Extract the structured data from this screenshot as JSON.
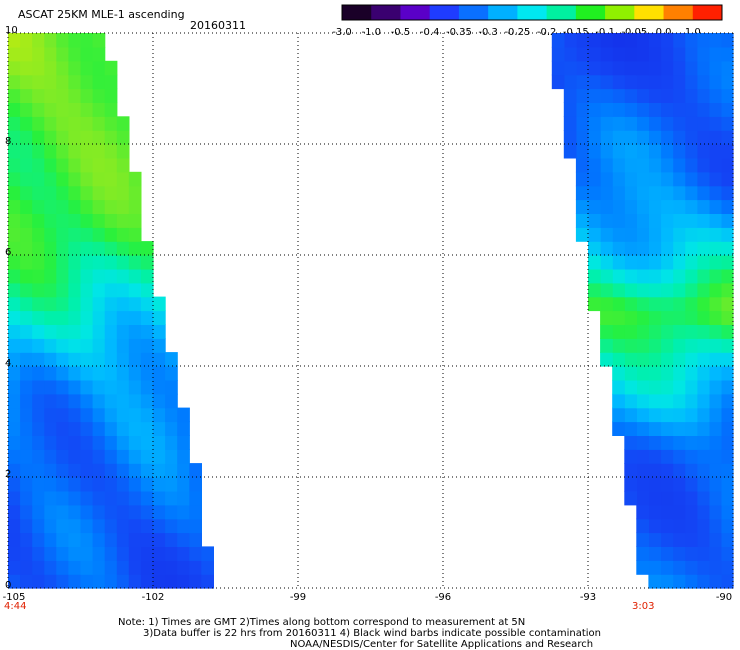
{
  "header": {
    "title": "ASCAT 25KM MLE-1 ascending",
    "date": "20160311"
  },
  "colorbar": {
    "labels": [
      "-3.0",
      "-1.0",
      "-0.5",
      "-0.4",
      "-0.35",
      "-0.3",
      "-0.25",
      "-0.2",
      "-0.15",
      "-0.1",
      "-0.05",
      "0.0",
      "1.0"
    ],
    "colors": [
      "#1a0028",
      "#3a0070",
      "#5a00c8",
      "#1f3cff",
      "#0a70ff",
      "#00b0ff",
      "#00e8f0",
      "#00f0a0",
      "#20f020",
      "#90f000",
      "#ffe000",
      "#ff8000",
      "#ff2000"
    ]
  },
  "chart_data": {
    "type": "heatmap",
    "title": "ASCAT 25KM MLE-1 ascending",
    "date": "20160311",
    "x_ticks": [
      "-105",
      "-102",
      "-99",
      "-96",
      "-93",
      "-90"
    ],
    "y_ticks": [
      "0",
      "2",
      "4",
      "6",
      "8",
      "10"
    ],
    "xlim": [
      -105,
      -90
    ],
    "ylim": [
      0,
      10
    ],
    "grid": true,
    "left_swath": {
      "start_time": "4:44",
      "west_lon": -105,
      "east_edge_lon_by_lat": [
        [
          0,
          -100.9
        ],
        [
          2,
          -101.2
        ],
        [
          4,
          -101.7
        ],
        [
          6,
          -102.2
        ],
        [
          8,
          -102.6
        ],
        [
          10,
          -103.1
        ]
      ],
      "values_by_lat": [
        {
          "lat": 0.5,
          "value": -0.37
        },
        {
          "lat": 2.0,
          "value": -0.36
        },
        {
          "lat": 3.5,
          "value": -0.32
        },
        {
          "lat": 5.0,
          "value": -0.26
        },
        {
          "lat": 6.5,
          "value": -0.21
        },
        {
          "lat": 8.5,
          "value": -0.17
        },
        {
          "lat": 9.5,
          "value": -0.15
        }
      ]
    },
    "right_swath": {
      "start_time": "3:03",
      "east_lon": -90,
      "west_edge_lon_by_lat": [
        [
          0,
          -91.8
        ],
        [
          2,
          -92.2
        ],
        [
          4,
          -92.6
        ],
        [
          6,
          -93.1
        ],
        [
          8,
          -93.4
        ],
        [
          10,
          -93.9
        ]
      ],
      "values_by_lat": [
        {
          "lat": 0.5,
          "value": -0.36
        },
        {
          "lat": 2.5,
          "value": -0.35
        },
        {
          "lat": 4.0,
          "value": -0.28
        },
        {
          "lat": 5.0,
          "value": -0.19
        },
        {
          "lat": 6.0,
          "value": -0.27
        },
        {
          "lat": 7.5,
          "value": -0.35
        },
        {
          "lat": 9.5,
          "value": -0.38
        }
      ]
    }
  },
  "notes": {
    "line1": "Note: 1) Times are GMT 2)Times along bottom correspond to measurement at 5N",
    "line2": "3)Data buffer is 22 hrs from 20160311 4) Black wind barbs indicate possible contamination",
    "line3": "NOAA/NESDIS/Center for Satellite Applications and Research"
  }
}
